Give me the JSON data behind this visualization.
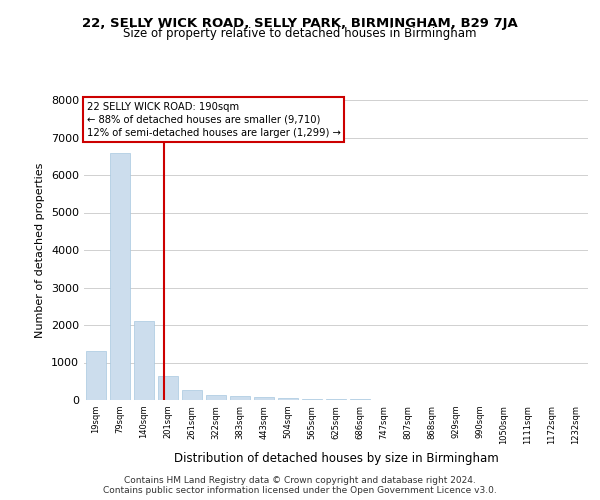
{
  "title": "22, SELLY WICK ROAD, SELLY PARK, BIRMINGHAM, B29 7JA",
  "subtitle": "Size of property relative to detached houses in Birmingham",
  "xlabel": "Distribution of detached houses by size in Birmingham",
  "ylabel": "Number of detached properties",
  "bar_color": "#ccdded",
  "bar_edgecolor": "#a8c8e0",
  "categories": [
    "19sqm",
    "79sqm",
    "140sqm",
    "201sqm",
    "261sqm",
    "322sqm",
    "383sqm",
    "443sqm",
    "504sqm",
    "565sqm",
    "625sqm",
    "686sqm",
    "747sqm",
    "807sqm",
    "868sqm",
    "929sqm",
    "990sqm",
    "1050sqm",
    "1111sqm",
    "1172sqm",
    "1232sqm"
  ],
  "values": [
    1300,
    6600,
    2100,
    650,
    280,
    130,
    100,
    80,
    50,
    30,
    20,
    15,
    10,
    8,
    5,
    4,
    3,
    2,
    2,
    1,
    1
  ],
  "red_line_x": 2.82,
  "annotation_line1": "22 SELLY WICK ROAD: 190sqm",
  "annotation_line2": "← 88% of detached houses are smaller (9,710)",
  "annotation_line3": "12% of semi-detached houses are larger (1,299) →",
  "annotation_box_color": "#ffffff",
  "annotation_box_edgecolor": "#cc0000",
  "red_line_color": "#cc0000",
  "ylim": [
    0,
    8000
  ],
  "yticks": [
    0,
    1000,
    2000,
    3000,
    4000,
    5000,
    6000,
    7000,
    8000
  ],
  "footer1": "Contains HM Land Registry data © Crown copyright and database right 2024.",
  "footer2": "Contains public sector information licensed under the Open Government Licence v3.0.",
  "background_color": "#ffffff",
  "grid_color": "#d0d0d0"
}
